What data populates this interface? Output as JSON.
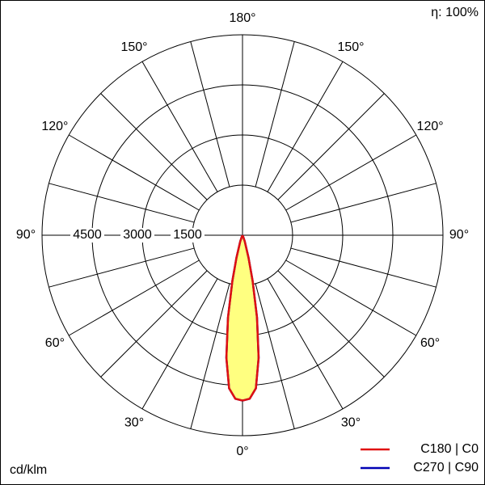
{
  "chart_data": {
    "type": "polar",
    "efficiency_label": "η: 100%",
    "unit_label": "cd/klm",
    "angles": [
      0,
      2.5,
      5,
      7.5,
      10,
      12.5,
      15,
      20,
      25,
      30
    ],
    "series": [
      {
        "name": "C270 | C90",
        "color": "#0000b4",
        "values": [
          4950,
          4900,
          4600,
          3700,
          2500,
          1400,
          700,
          200,
          50,
          0
        ]
      },
      {
        "name": "C180 | C0",
        "color": "#e01010",
        "values": [
          4950,
          4900,
          4600,
          3700,
          2500,
          1400,
          700,
          200,
          50,
          0
        ]
      }
    ],
    "fill": "#ffff80",
    "rlim": [
      0,
      6000
    ],
    "rticks": [
      1500,
      3000,
      4500,
      6000
    ],
    "rtick_labels": [
      {
        "value": 1500,
        "label": "1500"
      },
      {
        "value": 3000,
        "label": "3000"
      },
      {
        "value": 4500,
        "label": "4500"
      }
    ],
    "thetaticks": [
      {
        "value": 0,
        "label": "0°"
      },
      {
        "value": 30,
        "label": "30°"
      },
      {
        "value": 60,
        "label": "60°"
      },
      {
        "value": 90,
        "label": "90°"
      },
      {
        "value": 120,
        "label": "120°"
      },
      {
        "value": 150,
        "label": "150°"
      },
      {
        "value": 180,
        "label": "180°"
      }
    ],
    "theta_grid": [
      15,
      45,
      75,
      105,
      135,
      165
    ]
  }
}
